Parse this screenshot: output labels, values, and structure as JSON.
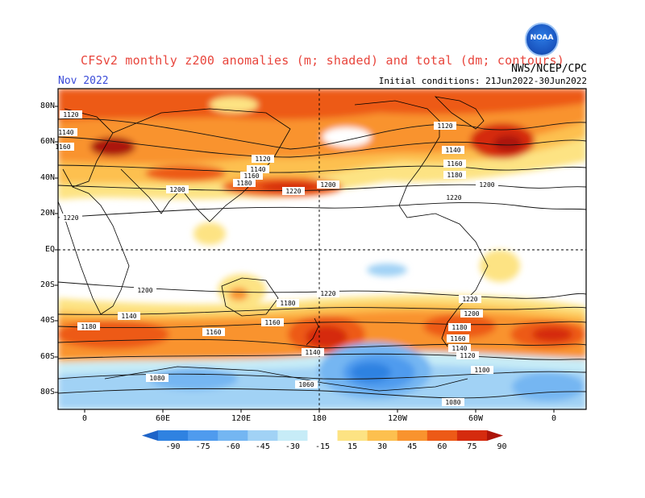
{
  "header": {
    "title": "CFSv2 monthly z200 anomalies (m; shaded) and total (dm; contours)",
    "month": "Nov 2022",
    "agency": "NWS/NCEP/CPC",
    "initial_conditions": "Initial conditions: 21Jun2022-30Jun2022",
    "logo_text": "NOAA"
  },
  "map": {
    "projection": "cylindrical equidistant",
    "lon_range": [
      -20,
      340
    ],
    "lat_range": [
      -90,
      90
    ],
    "lat_labels": [
      "80N",
      "60N",
      "40N",
      "20N",
      "EQ",
      "20S",
      "40S",
      "60S",
      "80S"
    ],
    "lon_labels": [
      "0",
      "60E",
      "120E",
      "180",
      "120W",
      "60W",
      "0"
    ],
    "contour_labels": [
      "1120",
      "1140",
      "1160",
      "1120",
      "1140",
      "1160",
      "1180",
      "1200",
      "1220",
      "1200",
      "1120",
      "1140",
      "1160",
      "1180",
      "1200",
      "1220",
      "1220",
      "1200",
      "1220",
      "1220",
      "1200",
      "1180",
      "1160",
      "1140",
      "1180",
      "1160",
      "1140",
      "1180",
      "1160",
      "1140",
      "1120",
      "1100",
      "1080",
      "1060",
      "1080"
    ],
    "colors": {
      "map_frame": "#000000",
      "coast": "#000000",
      "contour": "#000000"
    }
  },
  "colorbar": {
    "ticks": [
      "-90",
      "-75",
      "-60",
      "-45",
      "-30",
      "-15",
      "15",
      "30",
      "45",
      "60",
      "75",
      "90"
    ],
    "colors": [
      "#1e64c8",
      "#2f82e1",
      "#4f9bee",
      "#74b6f2",
      "#a1d2f5",
      "#c7ecf7",
      "#ffffff",
      "#fde383",
      "#fdc04f",
      "#f9932e",
      "#ed5a17",
      "#d52b0e",
      "#ac1409"
    ]
  }
}
